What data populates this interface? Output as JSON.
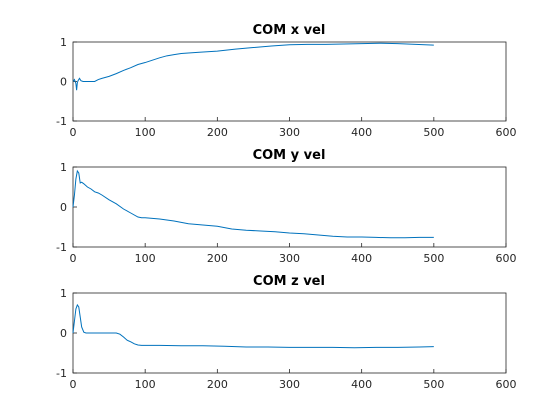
{
  "colors": {
    "series": "#0072bd",
    "axes": "#262626",
    "background": "#ffffff"
  },
  "chart_data": [
    {
      "type": "line",
      "title": "COM x vel",
      "xlabel": "",
      "ylabel": "",
      "xlim": [
        0,
        600
      ],
      "ylim": [
        -1,
        1
      ],
      "xticks": [
        "0",
        "100",
        "200",
        "300",
        "400",
        "500",
        "600"
      ],
      "yticks": [
        "-1",
        "0",
        "1"
      ],
      "grid": false,
      "series": [
        {
          "x": [
            0,
            2,
            4,
            5,
            6,
            7,
            9,
            11,
            14,
            20,
            25,
            30,
            35,
            40,
            50,
            60,
            70,
            80,
            90,
            100,
            110,
            120,
            130,
            140,
            150,
            175,
            200,
            225,
            250,
            275,
            300,
            325,
            350,
            375,
            400,
            425,
            450,
            475,
            500
          ],
          "y": [
            0,
            0.05,
            -0.05,
            -0.22,
            -0.03,
            0.02,
            0.08,
            0.02,
            0.0,
            0.0,
            0.0,
            0.0,
            0.05,
            0.08,
            0.13,
            0.2,
            0.28,
            0.35,
            0.43,
            0.48,
            0.54,
            0.6,
            0.65,
            0.68,
            0.71,
            0.74,
            0.77,
            0.82,
            0.86,
            0.9,
            0.93,
            0.94,
            0.94,
            0.95,
            0.96,
            0.97,
            0.96,
            0.94,
            0.92
          ]
        }
      ]
    },
    {
      "type": "line",
      "title": "COM y vel",
      "xlabel": "",
      "ylabel": "",
      "xlim": [
        0,
        600
      ],
      "ylim": [
        -1,
        1
      ],
      "xticks": [
        "0",
        "100",
        "200",
        "300",
        "400",
        "500",
        "600"
      ],
      "yticks": [
        "-1",
        "0",
        "1"
      ],
      "grid": false,
      "series": [
        {
          "x": [
            0,
            2,
            4,
            6,
            8,
            10,
            12,
            15,
            20,
            25,
            30,
            35,
            40,
            50,
            60,
            70,
            80,
            90,
            95,
            100,
            120,
            140,
            160,
            180,
            200,
            220,
            240,
            260,
            280,
            300,
            320,
            340,
            360,
            380,
            400,
            420,
            440,
            460,
            480,
            500
          ],
          "y": [
            0,
            0.3,
            0.7,
            0.9,
            0.85,
            0.6,
            0.62,
            0.58,
            0.5,
            0.45,
            0.38,
            0.35,
            0.3,
            0.18,
            0.08,
            -0.05,
            -0.15,
            -0.25,
            -0.27,
            -0.27,
            -0.3,
            -0.35,
            -0.42,
            -0.45,
            -0.48,
            -0.55,
            -0.58,
            -0.6,
            -0.62,
            -0.65,
            -0.67,
            -0.7,
            -0.73,
            -0.75,
            -0.75,
            -0.76,
            -0.77,
            -0.77,
            -0.76,
            -0.76
          ]
        }
      ]
    },
    {
      "type": "line",
      "title": "COM z vel",
      "xlabel": "",
      "ylabel": "",
      "xlim": [
        0,
        600
      ],
      "ylim": [
        -1,
        1
      ],
      "xticks": [
        "0",
        "100",
        "200",
        "300",
        "400",
        "500",
        "600"
      ],
      "yticks": [
        "-1",
        "0",
        "1"
      ],
      "grid": false,
      "series": [
        {
          "x": [
            0,
            2,
            4,
            6,
            8,
            10,
            12,
            15,
            18,
            20,
            25,
            30,
            40,
            50,
            60,
            65,
            70,
            75,
            80,
            85,
            90,
            95,
            100,
            120,
            150,
            180,
            210,
            240,
            270,
            300,
            330,
            360,
            390,
            420,
            450,
            480,
            500
          ],
          "y": [
            0,
            0.3,
            0.6,
            0.7,
            0.65,
            0.4,
            0.15,
            0.02,
            0.0,
            0.0,
            0.0,
            0.0,
            0.0,
            0.0,
            0.0,
            -0.03,
            -0.1,
            -0.18,
            -0.22,
            -0.27,
            -0.3,
            -0.31,
            -0.31,
            -0.31,
            -0.32,
            -0.32,
            -0.33,
            -0.35,
            -0.35,
            -0.36,
            -0.36,
            -0.36,
            -0.37,
            -0.36,
            -0.36,
            -0.35,
            -0.34
          ]
        }
      ]
    }
  ]
}
